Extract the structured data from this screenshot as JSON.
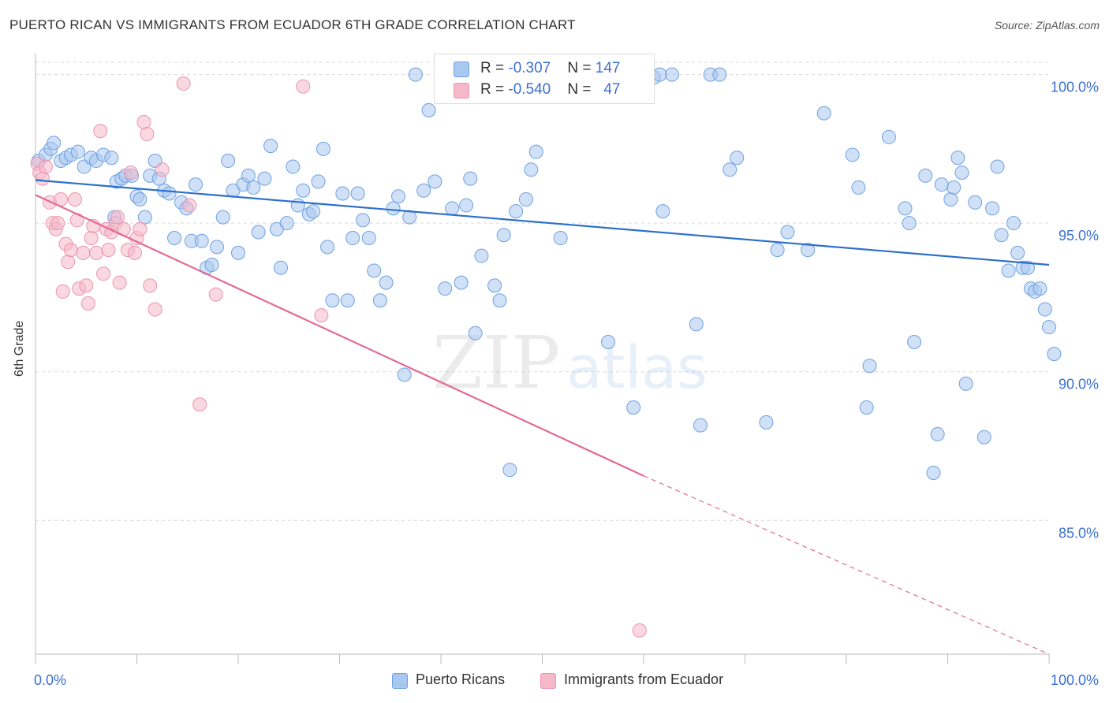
{
  "title": "PUERTO RICAN VS IMMIGRANTS FROM ECUADOR 6TH GRADE CORRELATION CHART",
  "source": "Source: ZipAtlas.com",
  "watermark": {
    "zip": "ZIP",
    "atlas": "atlas"
  },
  "legend": {
    "rows": [
      {
        "r_label": "R = ",
        "r_value": "-0.307",
        "n_label": "N = ",
        "n_value": "147",
        "color": "#a9c8f0"
      },
      {
        "r_label": "R = ",
        "r_value": "-0.540",
        "n_label": "N = ",
        "n_value": "47",
        "color": "#f5b8cb"
      }
    ]
  },
  "bottom_legend": [
    {
      "label": "Puerto Ricans",
      "color": "#a9c8f0"
    },
    {
      "label": "Immigrants from Ecuador",
      "color": "#f5b8cb"
    }
  ],
  "chart_data": {
    "type": "scatter",
    "title": "PUERTO RICAN VS IMMIGRANTS FROM ECUADOR 6TH GRADE CORRELATION CHART",
    "xlabel": "",
    "ylabel": "6th Grade",
    "xlim": [
      0,
      100
    ],
    "ylim": [
      80.5,
      100.6
    ],
    "x_tick_labels": [
      "0.0%",
      "100.0%"
    ],
    "y_ticks": [
      85,
      90,
      95,
      100
    ],
    "y_tick_labels": [
      "85.0%",
      "90.0%",
      "95.0%",
      "100.0%"
    ],
    "grid": "horizontal dashed",
    "series": [
      {
        "name": "Puerto Ricans",
        "color": "#6fa1e0",
        "fill": "#a9c8f0",
        "trend": {
          "x0": 0,
          "y0": 96.45,
          "x1": 100,
          "y1": 93.6,
          "color": "#2d6fcc"
        },
        "points": [
          [
            0.3,
            97.1
          ],
          [
            1,
            97.3
          ],
          [
            1.5,
            97.5
          ],
          [
            1.8,
            97.7
          ],
          [
            2.5,
            97.1
          ],
          [
            3,
            97.2
          ],
          [
            3.5,
            97.3
          ],
          [
            4.2,
            97.4
          ],
          [
            4.8,
            96.9
          ],
          [
            5.5,
            97.2
          ],
          [
            6,
            97.1
          ],
          [
            6.7,
            97.3
          ],
          [
            7.5,
            97.2
          ],
          [
            7.8,
            95.2
          ],
          [
            8,
            96.4
          ],
          [
            8.5,
            96.5
          ],
          [
            8.9,
            96.6
          ],
          [
            9.5,
            96.6
          ],
          [
            10,
            95.9
          ],
          [
            10.3,
            95.8
          ],
          [
            10.8,
            95.2
          ],
          [
            11.3,
            96.6
          ],
          [
            11.8,
            97.1
          ],
          [
            12.2,
            96.5
          ],
          [
            12.7,
            96.1
          ],
          [
            13.2,
            96.0
          ],
          [
            13.7,
            94.5
          ],
          [
            14.4,
            95.7
          ],
          [
            14.9,
            95.5
          ],
          [
            15.4,
            94.4
          ],
          [
            15.8,
            96.3
          ],
          [
            16.4,
            94.4
          ],
          [
            16.9,
            93.5
          ],
          [
            17.4,
            93.6
          ],
          [
            17.9,
            94.2
          ],
          [
            18.5,
            95.2
          ],
          [
            19,
            97.1
          ],
          [
            19.5,
            96.1
          ],
          [
            20,
            94.0
          ],
          [
            20.5,
            96.3
          ],
          [
            21,
            96.6
          ],
          [
            21.5,
            96.2
          ],
          [
            22,
            94.7
          ],
          [
            22.6,
            96.5
          ],
          [
            23.2,
            97.6
          ],
          [
            23.8,
            94.8
          ],
          [
            24.2,
            93.5
          ],
          [
            24.8,
            95.0
          ],
          [
            25.4,
            96.9
          ],
          [
            25.9,
            95.6
          ],
          [
            26.4,
            96.1
          ],
          [
            27,
            95.3
          ],
          [
            27.4,
            95.4
          ],
          [
            27.9,
            96.4
          ],
          [
            28.4,
            97.5
          ],
          [
            28.8,
            94.2
          ],
          [
            29.3,
            92.4
          ],
          [
            30.3,
            96.0
          ],
          [
            30.8,
            92.4
          ],
          [
            31.3,
            94.5
          ],
          [
            31.8,
            96.0
          ],
          [
            32.3,
            95.1
          ],
          [
            32.9,
            94.5
          ],
          [
            33.4,
            93.4
          ],
          [
            34,
            92.4
          ],
          [
            34.6,
            93.0
          ],
          [
            35.3,
            95.5
          ],
          [
            35.8,
            95.9
          ],
          [
            36.4,
            89.9
          ],
          [
            36.9,
            95.2
          ],
          [
            37.5,
            100.0
          ],
          [
            38.3,
            96.1
          ],
          [
            38.8,
            98.8
          ],
          [
            39.4,
            96.4
          ],
          [
            40.4,
            92.8
          ],
          [
            41.1,
            95.5
          ],
          [
            42,
            93.0
          ],
          [
            42.5,
            95.6
          ],
          [
            42.9,
            96.5
          ],
          [
            43.4,
            91.3
          ],
          [
            44,
            93.9
          ],
          [
            45.3,
            92.9
          ],
          [
            45.8,
            92.4
          ],
          [
            46.2,
            94.6
          ],
          [
            46.8,
            86.7
          ],
          [
            47.4,
            95.4
          ],
          [
            48.4,
            95.8
          ],
          [
            48.9,
            96.8
          ],
          [
            49.4,
            97.4
          ],
          [
            50.3,
            99.8
          ],
          [
            51,
            100.0
          ],
          [
            51.8,
            94.5
          ],
          [
            53.6,
            100.0
          ],
          [
            55.5,
            99.9
          ],
          [
            55.9,
            99.9
          ],
          [
            56.5,
            91.0
          ],
          [
            59,
            88.8
          ],
          [
            60.4,
            100.0
          ],
          [
            61,
            99.9
          ],
          [
            61.6,
            100.0
          ],
          [
            61.9,
            95.4
          ],
          [
            62.8,
            100.0
          ],
          [
            65.2,
            91.6
          ],
          [
            65.6,
            88.2
          ],
          [
            66.6,
            100.0
          ],
          [
            67.5,
            100.0
          ],
          [
            68.5,
            96.8
          ],
          [
            69.2,
            97.2
          ],
          [
            72.1,
            88.3
          ],
          [
            73.2,
            94.1
          ],
          [
            74.2,
            94.7
          ],
          [
            76.2,
            94.1
          ],
          [
            77.8,
            98.7
          ],
          [
            80.6,
            97.3
          ],
          [
            81.2,
            96.2
          ],
          [
            82,
            88.8
          ],
          [
            82.3,
            90.2
          ],
          [
            84.2,
            97.9
          ],
          [
            85.8,
            95.5
          ],
          [
            86.2,
            95.0
          ],
          [
            86.7,
            91.0
          ],
          [
            87.8,
            96.6
          ],
          [
            88.6,
            86.6
          ],
          [
            89,
            87.9
          ],
          [
            89.4,
            96.3
          ],
          [
            90.3,
            95.8
          ],
          [
            90.6,
            96.2
          ],
          [
            91,
            97.2
          ],
          [
            91.4,
            96.7
          ],
          [
            91.8,
            89.6
          ],
          [
            92.7,
            95.7
          ],
          [
            93.6,
            87.8
          ],
          [
            94.4,
            95.5
          ],
          [
            94.9,
            96.9
          ],
          [
            95.3,
            94.6
          ],
          [
            96,
            93.4
          ],
          [
            96.5,
            95.0
          ],
          [
            96.9,
            94.0
          ],
          [
            97.4,
            93.5
          ],
          [
            97.9,
            93.5
          ],
          [
            98.2,
            92.8
          ],
          [
            98.6,
            92.7
          ],
          [
            99.1,
            92.8
          ],
          [
            99.6,
            92.1
          ],
          [
            100,
            91.5
          ],
          [
            100.5,
            90.6
          ]
        ]
      },
      {
        "name": "Immigrants from Ecuador",
        "color": "#ec93af",
        "fill": "#f5b8cb",
        "trend": {
          "x0": 0,
          "y0": 95.95,
          "x1": 60,
          "y1": 86.5,
          "x_dash_end": 100,
          "y_dash_end": 80.5,
          "color": "#e26b93"
        },
        "points": [
          [
            0.2,
            97.0
          ],
          [
            0.4,
            96.7
          ],
          [
            0.7,
            96.5
          ],
          [
            1,
            96.9
          ],
          [
            1.4,
            95.7
          ],
          [
            1.7,
            95.0
          ],
          [
            2,
            94.8
          ],
          [
            2.2,
            95.0
          ],
          [
            2.5,
            95.8
          ],
          [
            2.7,
            92.7
          ],
          [
            3,
            94.3
          ],
          [
            3.2,
            93.7
          ],
          [
            3.5,
            94.1
          ],
          [
            3.9,
            95.8
          ],
          [
            4.1,
            95.1
          ],
          [
            4.3,
            92.8
          ],
          [
            4.7,
            94.0
          ],
          [
            5,
            92.9
          ],
          [
            5.2,
            92.3
          ],
          [
            5.5,
            94.5
          ],
          [
            5.7,
            94.9
          ],
          [
            6,
            94.0
          ],
          [
            6.4,
            98.1
          ],
          [
            6.7,
            93.3
          ],
          [
            7,
            94.8
          ],
          [
            7.2,
            94.1
          ],
          [
            7.5,
            94.7
          ],
          [
            7.9,
            95.0
          ],
          [
            8.1,
            95.2
          ],
          [
            8.3,
            93.0
          ],
          [
            8.7,
            94.8
          ],
          [
            9.1,
            94.1
          ],
          [
            9.4,
            96.7
          ],
          [
            9.8,
            94.0
          ],
          [
            10,
            94.5
          ],
          [
            10.3,
            94.8
          ],
          [
            10.7,
            98.4
          ],
          [
            11,
            98.0
          ],
          [
            11.3,
            92.9
          ],
          [
            11.8,
            92.1
          ],
          [
            12.5,
            96.8
          ],
          [
            14.6,
            99.7
          ],
          [
            15.2,
            95.6
          ],
          [
            16.2,
            88.9
          ],
          [
            17.8,
            92.6
          ],
          [
            26.4,
            99.6
          ],
          [
            28.2,
            91.9
          ],
          [
            59.6,
            81.3
          ]
        ]
      }
    ]
  }
}
